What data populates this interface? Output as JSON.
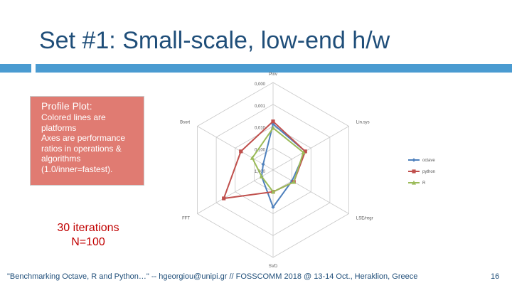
{
  "slide": {
    "title": "Set #1: Small-scale, low-end h/w",
    "profile_title": "Profile Plot:",
    "profile_lines": [
      "Colored lines are platforms",
      "Axes are performance ratios in operations & algorithms",
      "(1.0/inner=fastest)."
    ],
    "note_lines": [
      "30 iterations",
      "N=100"
    ],
    "footer": "\"Benchmarking Octave, R and Python…\" -- hgeorgiou@unipi.gr  //  FOSSCOMM 2018 @ 13-14 Oct., Heraklion, Greece",
    "page_number": "16"
  },
  "chart_data": {
    "type": "radar",
    "axes": [
      "Pinv",
      "Lin.sys",
      "LSE/regr",
      "SVD",
      "FFT",
      "Bsort"
    ],
    "ticks": [
      "0,000",
      "0,001",
      "0,010",
      "0,100",
      "1,000"
    ],
    "scale": "log",
    "range": [
      0.0001,
      1.0
    ],
    "series": [
      {
        "name": "octave",
        "color": "#4f81bd",
        "marker": "diamond",
        "values": [
          0.008,
          0.02,
          0.1,
          0.02,
          0.25,
          0.3
        ]
      },
      {
        "name": "python",
        "color": "#c0504d",
        "marker": "square",
        "values": [
          0.006,
          0.02,
          0.08,
          0.1,
          0.0025,
          0.02
        ]
      },
      {
        "name": "R",
        "color": "#9bbb59",
        "marker": "triangle",
        "values": [
          0.012,
          0.025,
          0.08,
          0.1,
          0.25,
          0.08
        ]
      }
    ],
    "legend_position": "right",
    "grid": true
  }
}
